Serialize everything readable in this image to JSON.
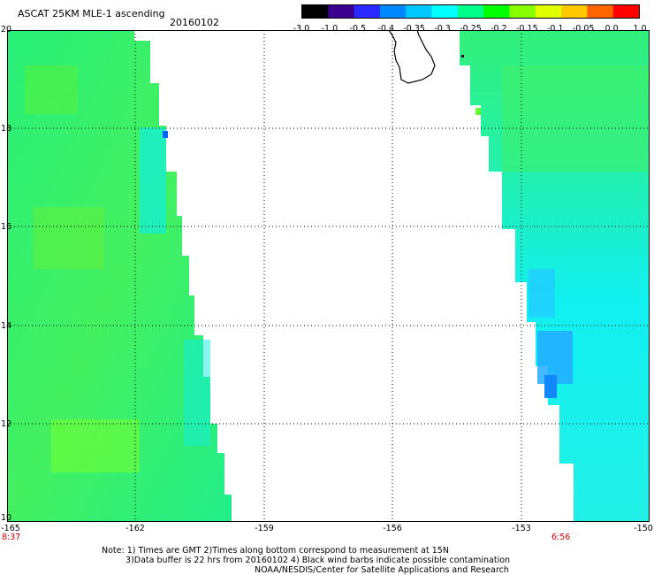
{
  "header": {
    "title": "ASCAT 25KM MLE-1 ascending",
    "date": "20160102"
  },
  "colorbar": {
    "labels": [
      "-3.0",
      "-1.0",
      "-0.5",
      "-0.4",
      "-0.35",
      "-0.3",
      "-0.25",
      "-0.2",
      "-0.15",
      "-0.1",
      "-0.05",
      "0.0",
      "1.0"
    ],
    "colors": [
      "#000000",
      "#3a0090",
      "#2a2aff",
      "#0088ff",
      "#00c8ff",
      "#00ffff",
      "#00ff88",
      "#00ff00",
      "#88ff00",
      "#e0ff00",
      "#ffc800",
      "#ff6400",
      "#ff0000"
    ]
  },
  "map": {
    "lat_labels": [
      "20",
      "18",
      "16",
      "14",
      "12",
      "10"
    ],
    "lon_labels": [
      "-165",
      "-162",
      "-159",
      "-156",
      "-153",
      "-150"
    ],
    "times": {
      "left": "8:37",
      "right": "6:56"
    },
    "swath_colors": {
      "green": "#2cf07c",
      "bright_green": "#66ff33",
      "aqua": "#11eee0",
      "cyan": "#00ffff",
      "blue": "#22aaff",
      "dark_blue": "#0066ff"
    }
  },
  "notes": {
    "line1": "Note: 1) Times are GMT 2)Times along bottom correspond to measurement at 15N",
    "line2": "3)Data buffer is 22 hrs from 20160102 4) Black wind barbs indicate possible contamination",
    "line3": "NOAA/NESDIS/Center for Satellite Applications and Research"
  }
}
